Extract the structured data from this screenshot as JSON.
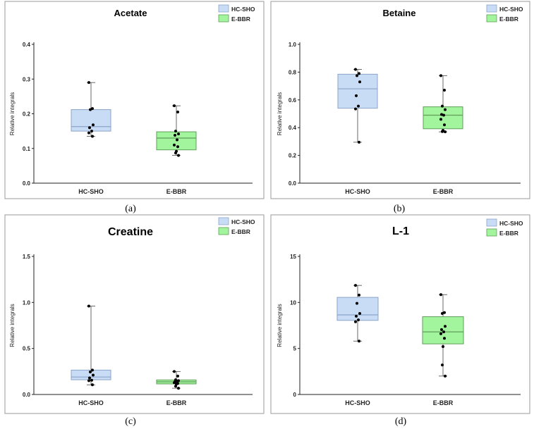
{
  "colors": {
    "hc_sho_fill": "#c9dcf5",
    "hc_sho_stroke": "#8aa4c8",
    "e_bbr_fill": "#a3f59d",
    "e_bbr_stroke": "#5f9d59",
    "median_hc": "#8aa4c8",
    "median_bbr": "#5f9d59",
    "point": "#000000",
    "panel_border": "#9a9a9a"
  },
  "chart_data": [
    {
      "panel": "a",
      "caption": "(a)",
      "type": "box",
      "title": "Acetate",
      "ylabel": "Relative integrals",
      "ylim": [
        0,
        0.4
      ],
      "yticks": [
        "0.0",
        "0.1",
        "0.2",
        "0.3",
        "0.4"
      ],
      "legend": [
        "HC-SHO",
        "E-BBR"
      ],
      "legend_position": "top-right",
      "categories": [
        "HC-SHO",
        "E-BBR"
      ],
      "boxes": [
        {
          "name": "HC-SHO",
          "min": 0.135,
          "q1": 0.15,
          "median": 0.163,
          "q3": 0.212,
          "max": 0.29,
          "points": [
            0.29,
            0.215,
            0.212,
            0.168,
            0.16,
            0.15,
            0.145,
            0.135
          ]
        },
        {
          "name": "E-BBR",
          "min": 0.08,
          "q1": 0.096,
          "median": 0.13,
          "q3": 0.148,
          "max": 0.223,
          "points": [
            0.223,
            0.205,
            0.15,
            0.142,
            0.138,
            0.125,
            0.11,
            0.105,
            0.092,
            0.087,
            0.08
          ]
        }
      ]
    },
    {
      "panel": "b",
      "caption": "(b)",
      "type": "box",
      "title": "Betaine",
      "ylabel": "Relative integrals",
      "ylim": [
        0,
        1.0
      ],
      "yticks": [
        "0.0",
        "0.2",
        "0.4",
        "0.6",
        "0.8",
        "1.0"
      ],
      "legend": [
        "HC-SHO",
        "E-BBR"
      ],
      "legend_position": "top-right",
      "categories": [
        "HC-SHO",
        "E-BBR"
      ],
      "boxes": [
        {
          "name": "HC-SHO",
          "min": 0.295,
          "q1": 0.54,
          "median": 0.68,
          "q3": 0.785,
          "max": 0.82,
          "points": [
            0.82,
            0.79,
            0.775,
            0.73,
            0.63,
            0.555,
            0.535,
            0.295
          ]
        },
        {
          "name": "E-BBR",
          "min": 0.37,
          "q1": 0.392,
          "median": 0.49,
          "q3": 0.55,
          "max": 0.775,
          "points": [
            0.775,
            0.67,
            0.555,
            0.53,
            0.495,
            0.49,
            0.46,
            0.42,
            0.38,
            0.372,
            0.37
          ]
        }
      ]
    },
    {
      "panel": "c",
      "caption": "(c)",
      "type": "box",
      "title": "Creatine",
      "ylabel": "Relative integrals",
      "ylim": [
        0,
        1.5
      ],
      "yticks": [
        "0.0",
        "0.5",
        "1.0",
        "1.5"
      ],
      "legend": [
        "HC-SHO",
        "E-BBR"
      ],
      "legend_position": "top-right",
      "categories": [
        "HC-SHO",
        "E-BBR"
      ],
      "boxes": [
        {
          "name": "HC-SHO",
          "min": 0.105,
          "q1": 0.16,
          "median": 0.19,
          "q3": 0.265,
          "max": 0.96,
          "points": [
            0.96,
            0.265,
            0.245,
            0.21,
            0.18,
            0.155,
            0.15,
            0.105
          ]
        },
        {
          "name": "E-BBR",
          "min": 0.068,
          "q1": 0.115,
          "median": 0.138,
          "q3": 0.158,
          "max": 0.25,
          "points": [
            0.25,
            0.2,
            0.16,
            0.15,
            0.14,
            0.138,
            0.128,
            0.12,
            0.112,
            0.09,
            0.068
          ]
        }
      ]
    },
    {
      "panel": "d",
      "caption": "(d)",
      "type": "box",
      "title": "L-1",
      "ylabel": "Relative integrals",
      "ylim": [
        0,
        15
      ],
      "yticks": [
        "0",
        "5",
        "10",
        "15"
      ],
      "legend": [
        "HC-SHO",
        "E-BBR"
      ],
      "legend_position": "top-right",
      "categories": [
        "HC-SHO",
        "E-BBR"
      ],
      "boxes": [
        {
          "name": "HC-SHO",
          "min": 5.8,
          "q1": 8.05,
          "median": 8.65,
          "q3": 10.55,
          "max": 11.85,
          "points": [
            11.85,
            10.8,
            9.9,
            8.8,
            8.5,
            8.1,
            7.9,
            5.8
          ]
        },
        {
          "name": "E-BBR",
          "min": 2.0,
          "q1": 5.5,
          "median": 6.8,
          "q3": 8.45,
          "max": 10.85,
          "points": [
            10.85,
            8.9,
            8.8,
            7.4,
            7.05,
            6.8,
            6.6,
            6.1,
            5.2,
            3.2,
            2.0
          ]
        }
      ]
    }
  ]
}
